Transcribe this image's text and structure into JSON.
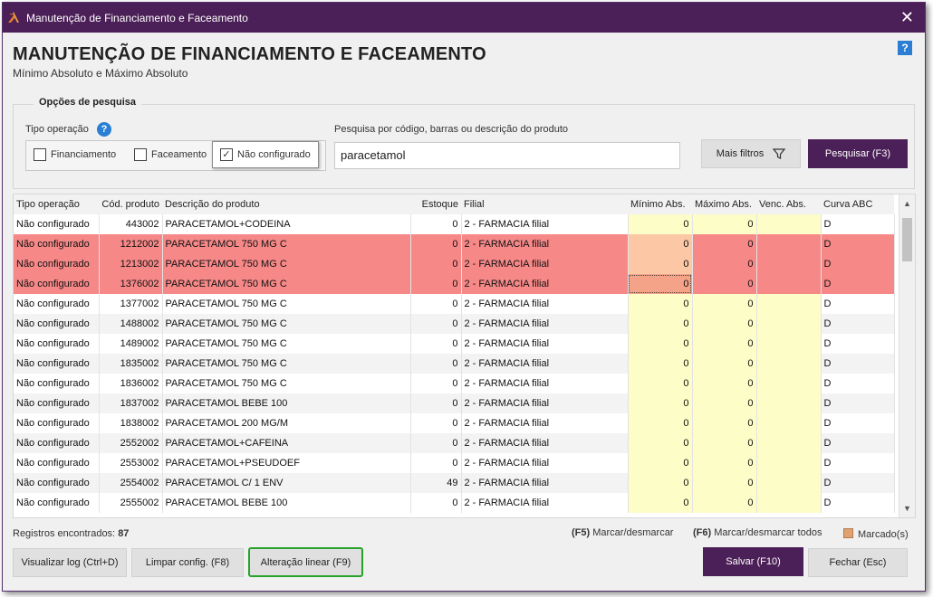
{
  "window": {
    "title": "Manutenção de Financiamento e Faceamento",
    "close_glyph": "✕"
  },
  "header": {
    "title": "MANUTENÇÃO DE FINANCIAMENTO E FACEAMENTO",
    "subtitle": "Mínimo Absoluto e Máximo Absoluto",
    "help_glyph": "?"
  },
  "search_options": {
    "group_title": "Opções de pesquisa",
    "operation_label": "Tipo operação",
    "help_glyph": "?",
    "checkboxes": [
      {
        "label": "Financiamento",
        "checked": false
      },
      {
        "label": "Faceamento",
        "checked": false
      },
      {
        "label": "Não configurado",
        "checked": true,
        "check_glyph": "✓"
      }
    ],
    "search_label": "Pesquisa por código, barras ou descrição do produto",
    "search_value": "paracetamol",
    "more_filters_label": "Mais filtros",
    "search_button_label": "Pesquisar (F3)"
  },
  "grid": {
    "columns": [
      "Tipo operação",
      "Cód. produto",
      "Descrição do produto",
      "Estoque",
      "Filial",
      "Mínimo Abs.",
      "Máximo Abs.",
      "Venc. Abs.",
      "Curva ABC"
    ],
    "rows": [
      {
        "tipo": "Não configurado",
        "cod": "443002",
        "desc": "PARACETAMOL+CODEINA",
        "estoque": "0",
        "filial": "2 - FARMACIA filial",
        "min": "0",
        "max": "0",
        "venc": "",
        "curva": "D",
        "highlight": false
      },
      {
        "tipo": "Não configurado",
        "cod": "1212002",
        "desc": "PARACETAMOL 750 MG C",
        "estoque": "0",
        "filial": "2 - FARMACIA filial",
        "min": "0",
        "max": "0",
        "venc": "",
        "curva": "D",
        "highlight": true
      },
      {
        "tipo": "Não configurado",
        "cod": "1213002",
        "desc": "PARACETAMOL 750 MG C",
        "estoque": "0",
        "filial": "2 - FARMACIA filial",
        "min": "0",
        "max": "0",
        "venc": "",
        "curva": "D",
        "highlight": true
      },
      {
        "tipo": "Não configurado",
        "cod": "1376002",
        "desc": "PARACETAMOL 750 MG C",
        "estoque": "0",
        "filial": "2 - FARMACIA filial",
        "min": "0",
        "max": "0",
        "venc": "",
        "curva": "D",
        "highlight": true,
        "focused": true
      },
      {
        "tipo": "Não configurado",
        "cod": "1377002",
        "desc": "PARACETAMOL 750 MG C",
        "estoque": "0",
        "filial": "2 - FARMACIA filial",
        "min": "0",
        "max": "0",
        "venc": "",
        "curva": "D",
        "highlight": false
      },
      {
        "tipo": "Não configurado",
        "cod": "1488002",
        "desc": "PARACETAMOL 750 MG C",
        "estoque": "0",
        "filial": "2 - FARMACIA filial",
        "min": "0",
        "max": "0",
        "venc": "",
        "curva": "D",
        "highlight": false
      },
      {
        "tipo": "Não configurado",
        "cod": "1489002",
        "desc": "PARACETAMOL 750 MG C",
        "estoque": "0",
        "filial": "2 - FARMACIA filial",
        "min": "0",
        "max": "0",
        "venc": "",
        "curva": "D",
        "highlight": false
      },
      {
        "tipo": "Não configurado",
        "cod": "1835002",
        "desc": "PARACETAMOL 750 MG C",
        "estoque": "0",
        "filial": "2 - FARMACIA filial",
        "min": "0",
        "max": "0",
        "venc": "",
        "curva": "D",
        "highlight": false
      },
      {
        "tipo": "Não configurado",
        "cod": "1836002",
        "desc": "PARACETAMOL 750 MG C",
        "estoque": "0",
        "filial": "2 - FARMACIA filial",
        "min": "0",
        "max": "0",
        "venc": "",
        "curva": "D",
        "highlight": false
      },
      {
        "tipo": "Não configurado",
        "cod": "1837002",
        "desc": "PARACETAMOL BEBE 100",
        "estoque": "0",
        "filial": "2 - FARMACIA filial",
        "min": "0",
        "max": "0",
        "venc": "",
        "curva": "D",
        "highlight": false
      },
      {
        "tipo": "Não configurado",
        "cod": "1838002",
        "desc": "PARACETAMOL 200 MG/M",
        "estoque": "0",
        "filial": "2 - FARMACIA filial",
        "min": "0",
        "max": "0",
        "venc": "",
        "curva": "D",
        "highlight": false
      },
      {
        "tipo": "Não configurado",
        "cod": "2552002",
        "desc": "PARACETAMOL+CAFEINA",
        "estoque": "0",
        "filial": "2 - FARMACIA filial",
        "min": "0",
        "max": "0",
        "venc": "",
        "curva": "D",
        "highlight": false
      },
      {
        "tipo": "Não configurado",
        "cod": "2553002",
        "desc": "PARACETAMOL+PSEUDOEF",
        "estoque": "0",
        "filial": "2 - FARMACIA filial",
        "min": "0",
        "max": "0",
        "venc": "",
        "curva": "D",
        "highlight": false
      },
      {
        "tipo": "Não configurado",
        "cod": "2554002",
        "desc": "PARACETAMOL C/ 1 ENV",
        "estoque": "49",
        "filial": "2 - FARMACIA filial",
        "min": "0",
        "max": "0",
        "venc": "",
        "curva": "D",
        "highlight": false
      },
      {
        "tipo": "Não configurado",
        "cod": "2555002",
        "desc": "PARACETAMOL BEBE 100",
        "estoque": "0",
        "filial": "2 - FARMACIA filial",
        "min": "0",
        "max": "0",
        "venc": "",
        "curva": "D",
        "highlight": false
      }
    ],
    "scroll_up_glyph": "▲",
    "scroll_down_glyph": "▼"
  },
  "footer": {
    "records_label": "Registros encontrados:",
    "records_count": "87",
    "f5_key": "(F5)",
    "f5_text": "Marcar/desmarcar",
    "f6_key": "(F6)",
    "f6_text": "Marcar/desmarcar todos",
    "marked_text": "Marcado(s)"
  },
  "buttons": {
    "log": "Visualizar log (Ctrl+D)",
    "clear": "Limpar config. (F8)",
    "linear": "Alteração linear (F9)",
    "save": "Salvar (F10)",
    "close": "Fechar (Esc)"
  },
  "colors": {
    "titlebar": "#4b1f57",
    "highlight_row": "#f78888",
    "yellow_cell": "#fdfdc8",
    "accent_green": "#27a32a"
  }
}
